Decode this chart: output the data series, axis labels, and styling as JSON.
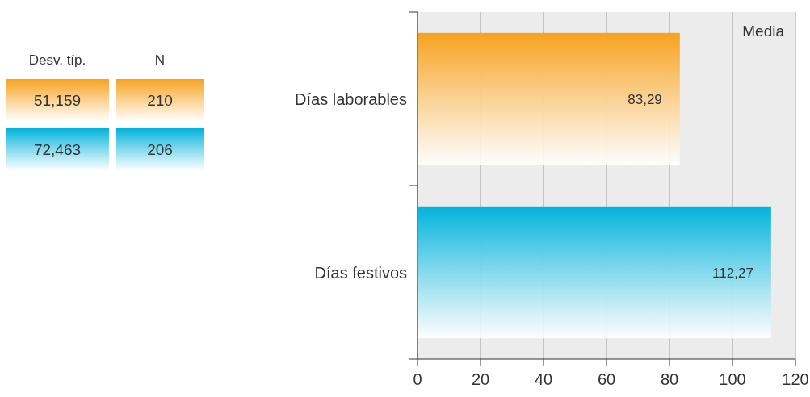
{
  "chart_data": {
    "type": "bar",
    "orientation": "horizontal",
    "categories": [
      "Días laborables",
      "Días festivos"
    ],
    "values": [
      83.29,
      112.27
    ],
    "value_labels": [
      "83,29",
      "112,27"
    ],
    "colors": [
      "#f7a21e",
      "#00b3dc"
    ],
    "xlim": [
      0,
      120
    ],
    "xticks": [
      0,
      20,
      40,
      60,
      80,
      100,
      120
    ],
    "grid": "x",
    "annotations": [
      "Media",
      "Desv. típ.",
      "N",
      "51,159",
      "210",
      "72,463",
      "206"
    ]
  }
}
